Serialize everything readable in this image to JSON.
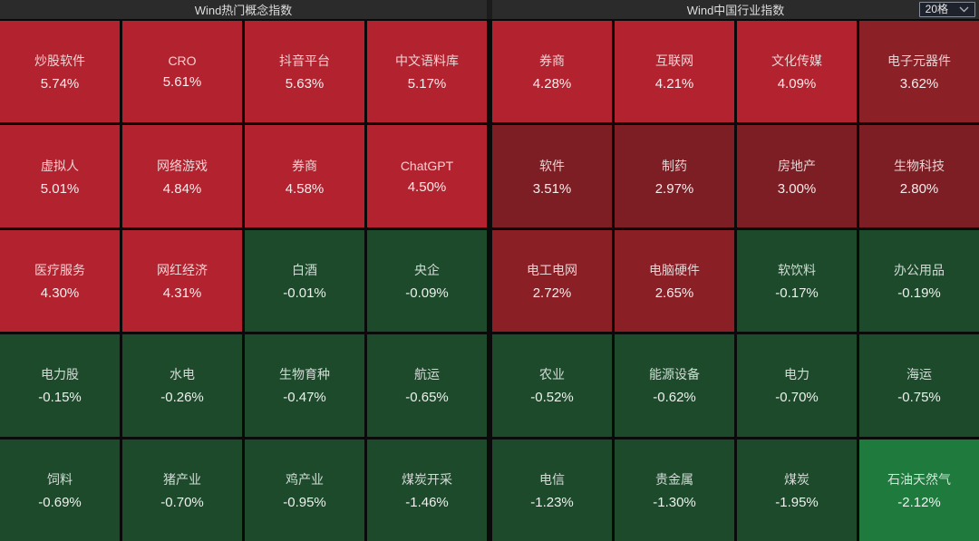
{
  "controls": {
    "grid_size_value": "20格"
  },
  "colors": {
    "page_bg": "#0a0a0a",
    "header_bg": "#2b2b2b",
    "strong_red": "#b2232f",
    "mid_red": "#8c2027",
    "dark_red": "#7d1e24",
    "dark_green": "#1c4a2b",
    "bright_green": "#1e7a3d",
    "select_border": "#878d99",
    "select_bg": "#1e222c"
  },
  "panels": [
    {
      "id": "hot-concept",
      "title": "Wind热门概念指数",
      "tiles": [
        {
          "name": "炒股软件",
          "change": "5.74%",
          "color": "#b2232f"
        },
        {
          "name": "CRO",
          "change": "5.61%",
          "color": "#b2232f"
        },
        {
          "name": "抖音平台",
          "change": "5.63%",
          "color": "#b2232f"
        },
        {
          "name": "中文语料库",
          "change": "5.17%",
          "color": "#b2232f"
        },
        {
          "name": "虚拟人",
          "change": "5.01%",
          "color": "#b2232f"
        },
        {
          "name": "网络游戏",
          "change": "4.84%",
          "color": "#b2232f"
        },
        {
          "name": "券商",
          "change": "4.58%",
          "color": "#b2232f"
        },
        {
          "name": "ChatGPT",
          "change": "4.50%",
          "color": "#b2232f"
        },
        {
          "name": "医疗服务",
          "change": "4.30%",
          "color": "#b2232f"
        },
        {
          "name": "网红经济",
          "change": "4.31%",
          "color": "#b2232f"
        },
        {
          "name": "白酒",
          "change": "-0.01%",
          "color": "#1c4a2b"
        },
        {
          "name": "央企",
          "change": "-0.09%",
          "color": "#1c4a2b"
        },
        {
          "name": "电力股",
          "change": "-0.15%",
          "color": "#1c4a2b"
        },
        {
          "name": "水电",
          "change": "-0.26%",
          "color": "#1c4a2b"
        },
        {
          "name": "生物育种",
          "change": "-0.47%",
          "color": "#1c4a2b"
        },
        {
          "name": "航运",
          "change": "-0.65%",
          "color": "#1c4a2b"
        },
        {
          "name": "饲料",
          "change": "-0.69%",
          "color": "#1c4a2b"
        },
        {
          "name": "猪产业",
          "change": "-0.70%",
          "color": "#1c4a2b"
        },
        {
          "name": "鸡产业",
          "change": "-0.95%",
          "color": "#1c4a2b"
        },
        {
          "name": "煤炭开采",
          "change": "-1.46%",
          "color": "#1c4a2b"
        }
      ]
    },
    {
      "id": "china-industry",
      "title": "Wind中国行业指数",
      "tiles": [
        {
          "name": "券商",
          "change": "4.28%",
          "color": "#b2232f"
        },
        {
          "name": "互联网",
          "change": "4.21%",
          "color": "#b2232f"
        },
        {
          "name": "文化传媒",
          "change": "4.09%",
          "color": "#b2232f"
        },
        {
          "name": "电子元器件",
          "change": "3.62%",
          "color": "#8c2027"
        },
        {
          "name": "软件",
          "change": "3.51%",
          "color": "#7d1e24"
        },
        {
          "name": "制药",
          "change": "2.97%",
          "color": "#7d1e24"
        },
        {
          "name": "房地产",
          "change": "3.00%",
          "color": "#7d1e24"
        },
        {
          "name": "生物科技",
          "change": "2.80%",
          "color": "#7d1e24"
        },
        {
          "name": "电工电网",
          "change": "2.72%",
          "color": "#8a1f26"
        },
        {
          "name": "电脑硬件",
          "change": "2.65%",
          "color": "#8a1f26"
        },
        {
          "name": "软饮料",
          "change": "-0.17%",
          "color": "#1c4a2b"
        },
        {
          "name": "办公用品",
          "change": "-0.19%",
          "color": "#1c4a2b"
        },
        {
          "name": "农业",
          "change": "-0.52%",
          "color": "#1c4a2b"
        },
        {
          "name": "能源设备",
          "change": "-0.62%",
          "color": "#1c4a2b"
        },
        {
          "name": "电力",
          "change": "-0.70%",
          "color": "#1c4a2b"
        },
        {
          "name": "海运",
          "change": "-0.75%",
          "color": "#1c4a2b"
        },
        {
          "name": "电信",
          "change": "-1.23%",
          "color": "#1c4a2b"
        },
        {
          "name": "贵金属",
          "change": "-1.30%",
          "color": "#1c4a2b"
        },
        {
          "name": "煤炭",
          "change": "-1.95%",
          "color": "#1c4a2b"
        },
        {
          "name": "石油天然气",
          "change": "-2.12%",
          "color": "#1e7a3d"
        }
      ]
    }
  ],
  "chart_data": [
    {
      "type": "heatmap",
      "title": "Wind热门概念指数",
      "categories": [
        "炒股软件",
        "CRO",
        "抖音平台",
        "中文语料库",
        "虚拟人",
        "网络游戏",
        "券商",
        "ChatGPT",
        "医疗服务",
        "网红经济",
        "白酒",
        "央企",
        "电力股",
        "水电",
        "生物育种",
        "航运",
        "饲料",
        "猪产业",
        "鸡产业",
        "煤炭开采"
      ],
      "values": [
        5.74,
        5.61,
        5.63,
        5.17,
        5.01,
        4.84,
        4.58,
        4.5,
        4.3,
        4.31,
        -0.01,
        -0.09,
        -0.15,
        -0.26,
        -0.47,
        -0.65,
        -0.69,
        -0.7,
        -0.95,
        -1.46
      ],
      "unit": "%",
      "layout": "4x5 grid, red = positive change, green = negative change"
    },
    {
      "type": "heatmap",
      "title": "Wind中国行业指数",
      "categories": [
        "券商",
        "互联网",
        "文化传媒",
        "电子元器件",
        "软件",
        "制药",
        "房地产",
        "生物科技",
        "电工电网",
        "电脑硬件",
        "软饮料",
        "办公用品",
        "农业",
        "能源设备",
        "电力",
        "海运",
        "电信",
        "贵金属",
        "煤炭",
        "石油天然气"
      ],
      "values": [
        4.28,
        4.21,
        4.09,
        3.62,
        3.51,
        2.97,
        3.0,
        2.8,
        2.72,
        2.65,
        -0.17,
        -0.19,
        -0.52,
        -0.62,
        -0.7,
        -0.75,
        -1.23,
        -1.3,
        -1.95,
        -2.12
      ],
      "unit": "%",
      "layout": "4x5 grid, red = positive change, green = negative change"
    }
  ]
}
